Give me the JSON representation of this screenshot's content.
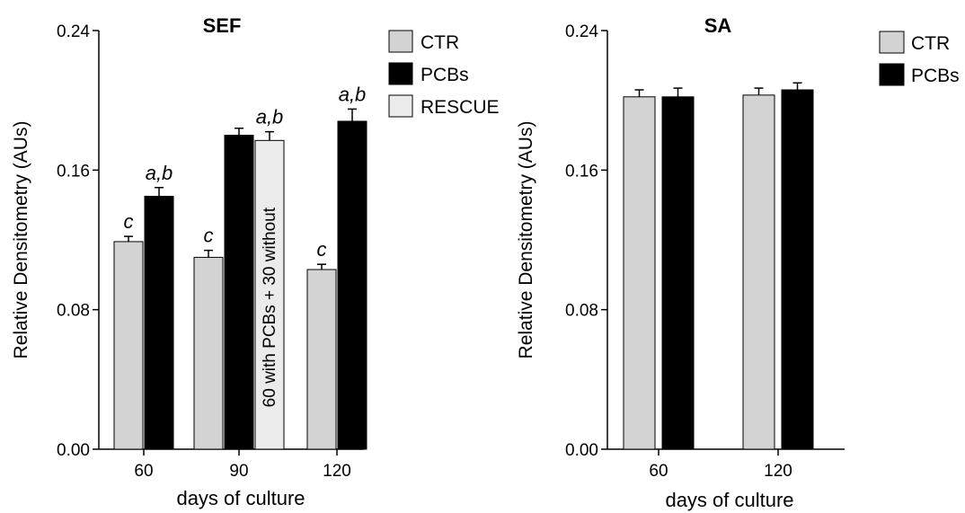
{
  "chart_data": [
    {
      "type": "bar",
      "title": "SEF",
      "xlabel": "days of culture",
      "ylabel": "Relative Densitometry (AUs)",
      "ylim": [
        0,
        0.24
      ],
      "yticks": [
        "0.00",
        "0.08",
        "0.16",
        "0.24"
      ],
      "categories": [
        "60",
        "90",
        "120"
      ],
      "series": [
        {
          "name": "CTR",
          "color": "#d3d3d3",
          "values": [
            0.119,
            0.11,
            0.103
          ],
          "errors": [
            0.003,
            0.004,
            0.003
          ],
          "labels": [
            "c",
            "c",
            "c"
          ]
        },
        {
          "name": "PCBs",
          "color": "#000000",
          "values": [
            0.145,
            0.18,
            0.188
          ],
          "errors": [
            0.005,
            0.004,
            0.007
          ],
          "labels": [
            "a,b",
            "",
            "a,b"
          ]
        },
        {
          "name": "RESCUE",
          "color": "#ebebeb",
          "values": [
            null,
            0.177,
            null
          ],
          "errors": [
            null,
            0.005,
            null
          ],
          "labels": [
            "",
            "a,b",
            ""
          ]
        }
      ],
      "bar_annotation": "60  with PCBs + 30 without",
      "legend": "top-right"
    },
    {
      "type": "bar",
      "title": "SA",
      "xlabel": "days of culture",
      "ylabel": "Relative Densitometry (AUs)",
      "ylim": [
        0,
        0.24
      ],
      "yticks": [
        "0.00",
        "0.08",
        "0.16",
        "0.24"
      ],
      "categories": [
        "60",
        "120"
      ],
      "series": [
        {
          "name": "CTR",
          "color": "#d3d3d3",
          "values": [
            0.202,
            0.203
          ],
          "errors": [
            0.004,
            0.004
          ]
        },
        {
          "name": "PCBs",
          "color": "#000000",
          "values": [
            0.202,
            0.206
          ],
          "errors": [
            0.005,
            0.004
          ]
        }
      ],
      "legend": "top-right"
    }
  ]
}
